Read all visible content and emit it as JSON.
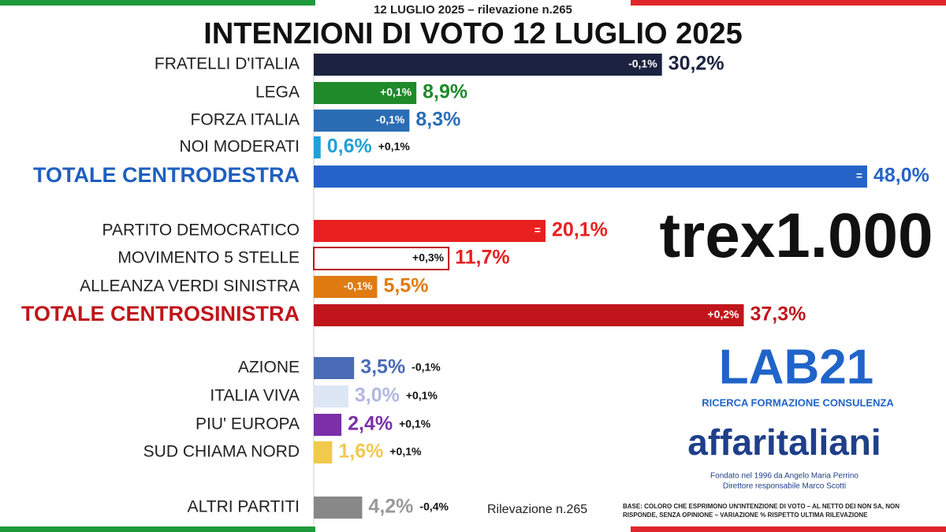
{
  "header": {
    "date_line": "12 LUGLIO 2025 – rilevazione n.265"
  },
  "chart_data": {
    "type": "bar",
    "orientation": "horizontal",
    "title": "INTENZIONI DI VOTO 12 LUGLIO 2025",
    "categories": [
      "FRATELLI D'ITALIA",
      "LEGA",
      "FORZA ITALIA",
      "NOI MODERATI",
      "TOTALE CENTRODESTRA",
      "PARTITO DEMOCRATICO",
      "MOVIMENTO 5 STELLE",
      "ALLEANZA VERDI SINISTRA",
      "TOTALE CENTROSINISTRA",
      "AZIONE",
      "ITALIA VIVA",
      "PIU' EUROPA",
      "SUD CHIAMA NORD",
      "ALTRI PARTITI"
    ],
    "values": [
      30.2,
      8.9,
      8.3,
      0.6,
      48.0,
      20.1,
      11.7,
      5.5,
      37.3,
      3.5,
      3.0,
      2.4,
      1.6,
      4.2
    ],
    "value_labels": [
      "30,2%",
      "8,9%",
      "8,3%",
      "0,6%",
      "48,0%",
      "20,1%",
      "11,7%",
      "5,5%",
      "37,3%",
      "3,5%",
      "3,0%",
      "2,4%",
      "1,6%",
      "4,2%"
    ],
    "change_labels": [
      "-0,1%",
      "+0,1%",
      "-0,1%",
      "+0,1%",
      "=",
      "=",
      "+0,3%",
      "-0,1%",
      "+0,2%",
      "-0,1%",
      "+0,1%",
      "+0,1%",
      "+0,1%",
      "-0,4%"
    ],
    "colors": [
      "#1c2340",
      "#1e8a2a",
      "#2a6db5",
      "#22a0d8",
      "#2563c8",
      "#e8201e",
      "#ffffff",
      "#e07b10",
      "#c0151b",
      "#4a6bb5",
      "#dde6f5",
      "#7b2fa8",
      "#f2c94c",
      "#888888"
    ],
    "label_colors": [
      "#1c2340",
      "#1e8a2a",
      "#2a6db5",
      "#22a0d8",
      "#2563c8",
      "#e8201e",
      "#e8201e",
      "#e07b10",
      "#c0151b",
      "#4a6bb5",
      "#b0b8e0",
      "#7b2fa8",
      "#f2c94c",
      "#999999"
    ],
    "category_colors": [
      "#222222",
      "#222222",
      "#222222",
      "#222222",
      "#1f5fbf",
      "#222222",
      "#222222",
      "#222222",
      "#c0151b",
      "#222222",
      "#222222",
      "#222222",
      "#222222",
      "#222222"
    ]
  },
  "logos": {
    "trex": "trex1.000",
    "lab": "LAB21",
    "lab_sub": "RICERCA FORMAZIONE CONSULENZA",
    "affari": "affaritaliani",
    "founded": "Fondato nel 1996 da Angelo Maria Perrino",
    "director": "Direttore responsabile Marco Scotti"
  },
  "footer": {
    "survey": "Rilevazione n.265",
    "note1": "BASE: COLORO CHE ESPRIMONO UN'INTENZIONE DI VOTO – AL NETTO DEI NON SA, NON",
    "note2": "RISPONDE, SENZA OPINIONE – VARIAZIONE % RISPETTO ULTIMA RILEVAZIONE"
  }
}
